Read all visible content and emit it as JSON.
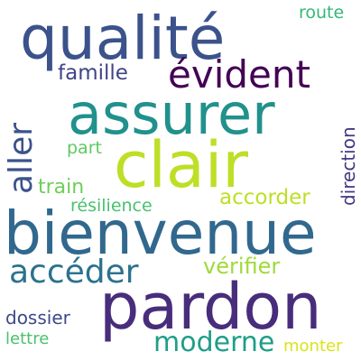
{
  "words": {
    "qualite": {
      "text": "qualité",
      "color": "#3b528b"
    },
    "evident": {
      "text": "évident",
      "color": "#440154"
    },
    "assurer": {
      "text": "assurer",
      "color": "#21918c"
    },
    "clair": {
      "text": "clair",
      "color": "#bddf26"
    },
    "bienvenue": {
      "text": "bienvenue",
      "color": "#31688e"
    },
    "pardon": {
      "text": "pardon",
      "color": "#472d7b"
    },
    "acceder": {
      "text": "accéder",
      "color": "#2c728e"
    },
    "aller": {
      "text": "aller",
      "color": "#3b528b"
    },
    "famille": {
      "text": "famille",
      "color": "#414487"
    },
    "verifier": {
      "text": "vérifier",
      "color": "#a0da39"
    },
    "accorder": {
      "text": "accorder",
      "color": "#bddf26"
    },
    "train": {
      "text": "train",
      "color": "#6ece58"
    },
    "part": {
      "text": "part",
      "color": "#5ec962"
    },
    "resilience": {
      "text": "résilience",
      "color": "#4ac16d"
    },
    "route": {
      "text": "route",
      "color": "#35b779"
    },
    "direction": {
      "text": "direction",
      "color": "#443983"
    },
    "dossier": {
      "text": "dossier",
      "color": "#3e4989"
    },
    "lettre": {
      "text": "lettre",
      "color": "#4ac16d"
    },
    "moderne": {
      "text": "moderne",
      "color": "#1f9e89"
    },
    "monter": {
      "text": "monter",
      "color": "#dae319"
    }
  }
}
